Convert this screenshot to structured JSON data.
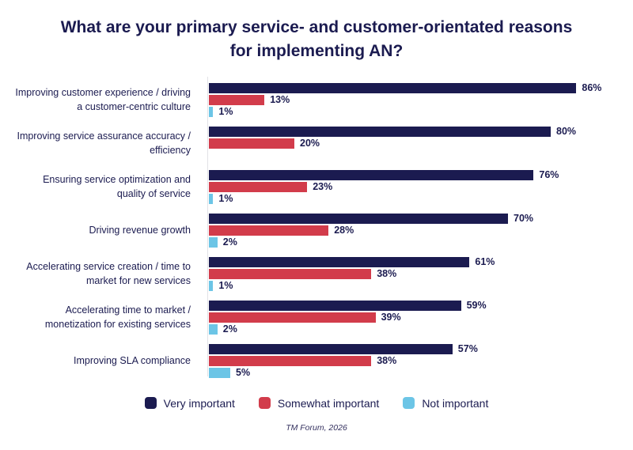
{
  "title": "What are your primary service- and customer-orientated reasons for implementing AN?",
  "source": "TM Forum, 2026",
  "colors": {
    "very_important": "#1b1b50",
    "somewhat_important": "#d23c4b",
    "not_important": "#6cc5e6",
    "axis_line": "#e2e2e6",
    "text": "#1b1b50"
  },
  "legend": [
    {
      "label": "Very important",
      "color": "#1b1b50"
    },
    {
      "label": "Somewhat important",
      "color": "#d23c4b"
    },
    {
      "label": "Not important",
      "color": "#6cc5e6"
    }
  ],
  "chart_data": {
    "type": "bar",
    "orientation": "horizontal",
    "title": "What are your primary service- and customer-orientated reasons for implementing AN?",
    "value_suffix": "%",
    "xlim": [
      0,
      100
    ],
    "grid": false,
    "legend_position": "bottom",
    "categories": [
      "Improving customer experience / driving a customer-centric culture",
      "Improving service assurance accuracy / efficiency",
      "Ensuring service optimization and quality of service",
      "Driving revenue growth",
      "Accelerating service creation / time to market for new services",
      "Accelerating time to market / monetization for existing services",
      "Improving SLA compliance"
    ],
    "series": [
      {
        "name": "Very important",
        "color": "#1b1b50",
        "values": [
          86,
          80,
          76,
          70,
          61,
          59,
          57
        ]
      },
      {
        "name": "Somewhat important",
        "color": "#d23c4b",
        "values": [
          13,
          20,
          23,
          28,
          38,
          39,
          38
        ]
      },
      {
        "name": "Not important",
        "color": "#6cc5e6",
        "values": [
          1,
          0,
          1,
          2,
          1,
          2,
          5
        ]
      }
    ]
  }
}
